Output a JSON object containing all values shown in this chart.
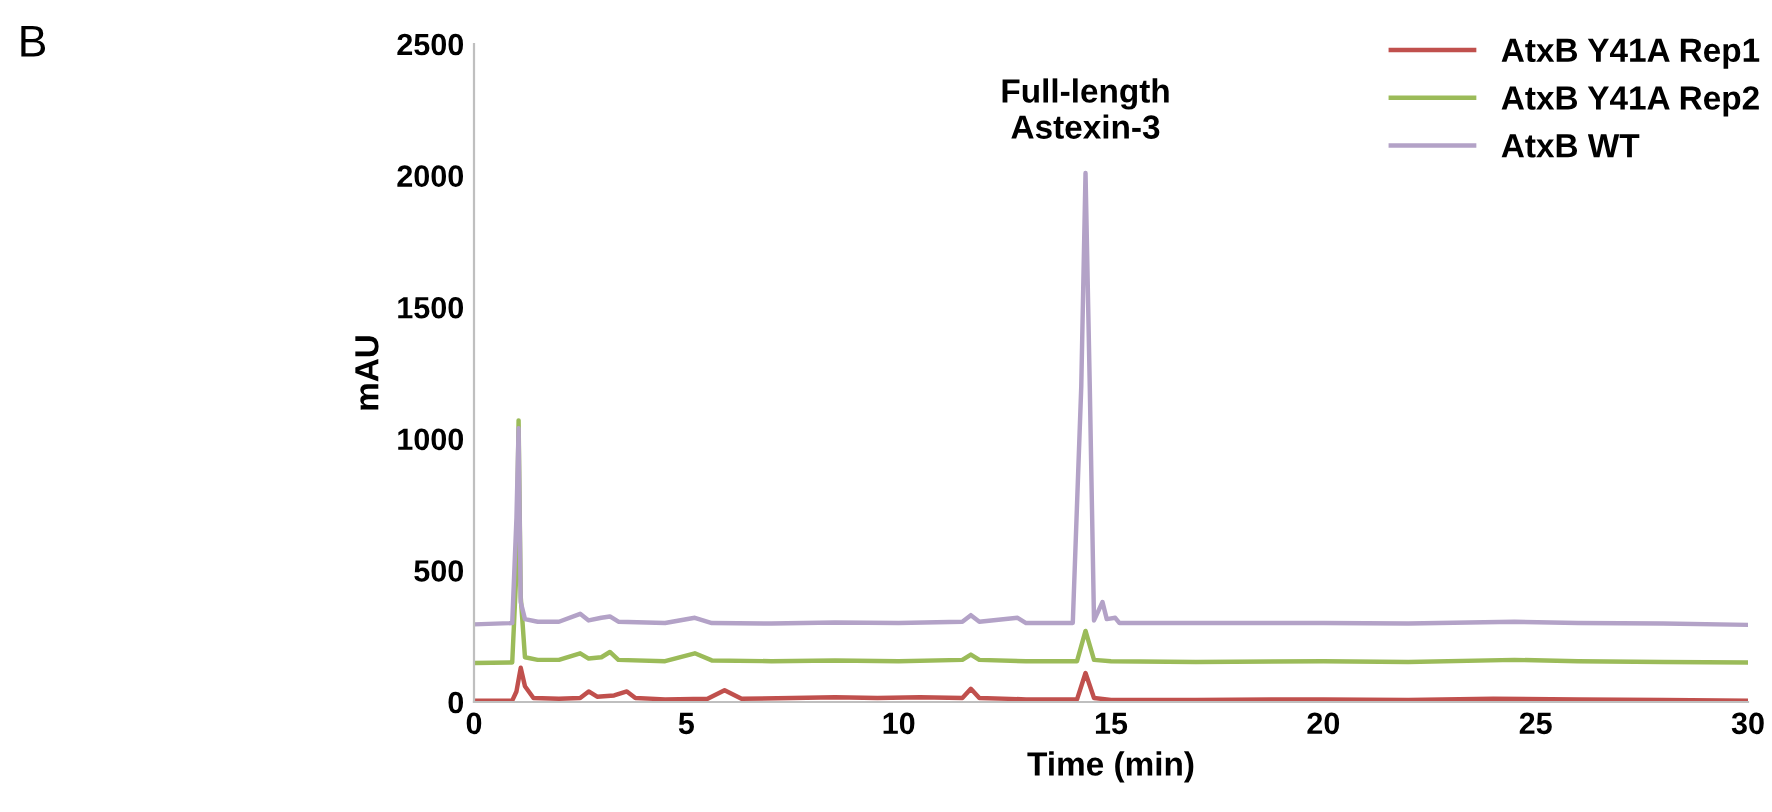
{
  "chart_data": {
    "type": "line",
    "xlabel": "Time (min)",
    "ylabel": "mAU",
    "xlim": [
      0,
      30
    ],
    "ylim": [
      0,
      2500
    ],
    "xticks": [
      0,
      5,
      10,
      15,
      20,
      25,
      30
    ],
    "yticks": [
      0,
      500,
      1000,
      1500,
      2000,
      2500
    ],
    "grid": false,
    "legend": "top right",
    "marker": "none",
    "line_style": "solid",
    "annotations": [
      "B",
      {
        "text": "Full-length\nAstexin-3",
        "x": 14.4,
        "y": 2030
      }
    ],
    "series": [
      {
        "name": "AtxB Y41A Rep1",
        "color": "#c0504d",
        "x": [
          0,
          0.9,
          1.0,
          1.1,
          1.2,
          1.4,
          2.0,
          2.5,
          2.7,
          2.9,
          3.3,
          3.6,
          3.8,
          4.5,
          5.5,
          5.9,
          6.3,
          7.5,
          8.5,
          9.5,
          10.5,
          11.5,
          11.7,
          11.9,
          13,
          14.2,
          14.4,
          14.6,
          15,
          17,
          20,
          22,
          24,
          26,
          28,
          30
        ],
        "values": [
          5,
          5,
          40,
          130,
          60,
          15,
          12,
          15,
          40,
          20,
          25,
          40,
          15,
          10,
          12,
          45,
          12,
          15,
          18,
          15,
          18,
          15,
          50,
          15,
          10,
          10,
          110,
          15,
          8,
          8,
          10,
          8,
          12,
          10,
          8,
          5
        ]
      },
      {
        "name": "AtxB Y41A Rep2",
        "color": "#9bbb59",
        "x": [
          0,
          0.9,
          1.0,
          1.05,
          1.1,
          1.2,
          1.5,
          2.0,
          2.5,
          2.7,
          3.0,
          3.2,
          3.4,
          4.5,
          5.2,
          5.6,
          7,
          8.5,
          10,
          11.5,
          11.7,
          11.9,
          13,
          14.2,
          14.4,
          14.6,
          15,
          17,
          20,
          22,
          24.5,
          26,
          28,
          30
        ],
        "values": [
          148,
          150,
          500,
          1070,
          400,
          170,
          160,
          160,
          185,
          165,
          170,
          190,
          160,
          155,
          185,
          158,
          155,
          158,
          155,
          160,
          180,
          160,
          155,
          155,
          270,
          160,
          155,
          152,
          155,
          152,
          160,
          155,
          152,
          150
        ]
      },
      {
        "name": "AtxB WT",
        "color": "#b3a2c7",
        "x": [
          0,
          0.9,
          1.0,
          1.05,
          1.1,
          1.2,
          1.5,
          2.0,
          2.5,
          2.7,
          3.0,
          3.2,
          3.4,
          4.5,
          5.2,
          5.6,
          7,
          8.5,
          10,
          11.5,
          11.7,
          11.9,
          12.8,
          13,
          14.1,
          14.3,
          14.4,
          14.5,
          14.6,
          14.8,
          14.9,
          15.1,
          15.2,
          16,
          18,
          20,
          22,
          24.5,
          26,
          28,
          30
        ],
        "values": [
          295,
          300,
          700,
          1040,
          380,
          315,
          305,
          305,
          335,
          310,
          320,
          325,
          305,
          300,
          320,
          300,
          298,
          302,
          300,
          305,
          330,
          305,
          320,
          300,
          300,
          1200,
          2010,
          1200,
          310,
          380,
          315,
          320,
          300,
          300,
          300,
          300,
          298,
          305,
          300,
          298,
          293
        ]
      }
    ]
  }
}
